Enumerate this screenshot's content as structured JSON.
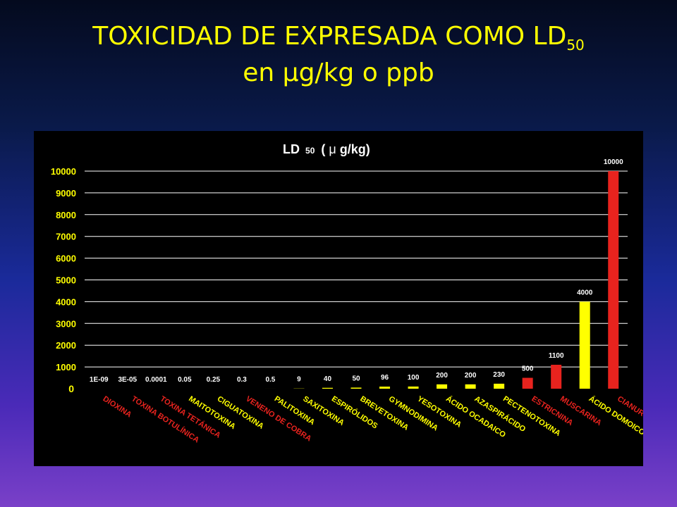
{
  "slide": {
    "title_line1": "TOXICIDAD DE EXPRESADA COMO LD",
    "title_subscript": "50",
    "title_line2_prefix": "en ",
    "title_mu": "μ",
    "title_line2_suffix": "g/kg o ppb"
  },
  "chart_data": {
    "type": "bar",
    "title": "LD 50 (μg/kg)",
    "title_parts": {
      "main": "LD",
      "sub": "50",
      "paren": "(",
      "mu": "μ",
      "rest": "g/kg)"
    },
    "ylim": [
      0,
      10000
    ],
    "yticks": [
      0,
      1000,
      2000,
      3000,
      4000,
      5000,
      6000,
      7000,
      8000,
      9000,
      10000
    ],
    "grid": true,
    "colors": {
      "red": "#e8231e",
      "yellow": "#ffff00",
      "grid": "#ffffff",
      "panel": "#000000",
      "tick_text": "#ffff00"
    },
    "categories": [
      "DIOXINA",
      "TOXINA BOTULÍNICA",
      "TOXINA TETÁNICA",
      "MAITOTOXINA",
      "CIGUATOXINA",
      "VENENO DE COBRA",
      "PALITOXINA",
      "SAXITOXINA",
      "ESPIRÓLIDOS",
      "BREVETOXINA",
      "GYMNODIMINA",
      "YESOTOXINA",
      "ÁCIDO OCADAICO",
      "AZASPIRÁCIDO",
      "PECTENOTOXINA",
      "ESTRICNINA",
      "MUSCARINA",
      "ÁCIDO DOMOICO",
      "CIANURO"
    ],
    "values": [
      1e-09,
      3e-05,
      0.0001,
      0.05,
      0.25,
      0.3,
      0.5,
      9,
      40,
      50,
      96,
      100,
      200,
      200,
      230,
      500,
      1100,
      4000,
      10000
    ],
    "value_labels": [
      "1E-09",
      "3E-05",
      "0.0001",
      "0.05",
      "0.25",
      "0.3",
      "0.5",
      "9",
      "40",
      "50",
      "96",
      "100",
      "200",
      "200",
      "230",
      "500",
      "1100",
      "4000",
      "10000"
    ],
    "bar_colors": [
      "red",
      "red",
      "red",
      "yellow",
      "yellow",
      "red",
      "yellow",
      "yellow",
      "yellow",
      "yellow",
      "yellow",
      "yellow",
      "yellow",
      "yellow",
      "yellow",
      "red",
      "red",
      "yellow",
      "red"
    ],
    "label_colors": [
      "red",
      "red",
      "red",
      "yellow",
      "yellow",
      "red",
      "yellow",
      "yellow",
      "yellow",
      "yellow",
      "yellow",
      "yellow",
      "yellow",
      "yellow",
      "yellow",
      "red",
      "red",
      "yellow",
      "red"
    ]
  }
}
